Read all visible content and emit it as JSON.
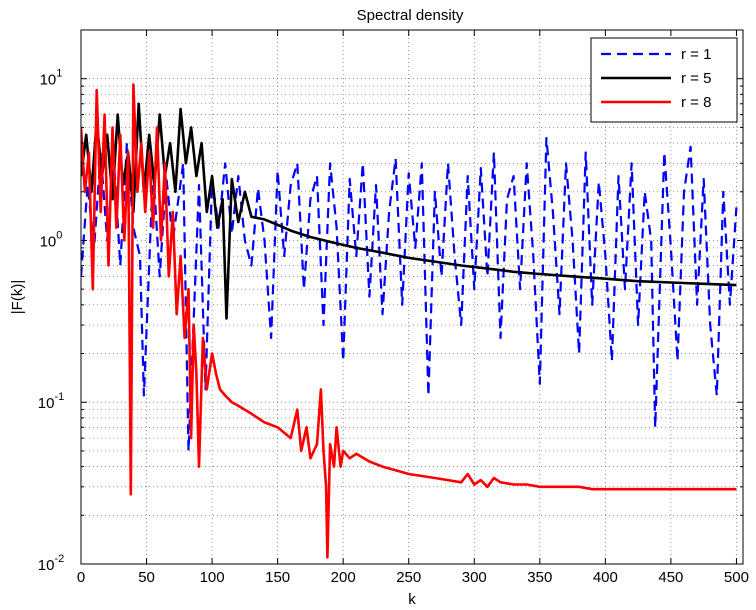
{
  "chart_data": {
    "type": "line",
    "title": "Spectral density",
    "xlabel": "k",
    "ylabel": "|F(k)|",
    "xlim": [
      0,
      505
    ],
    "ylim": [
      0.01,
      20
    ],
    "yscale": "log",
    "grid": true,
    "grid_style": "dotted",
    "legend_position": "top-right",
    "x_ticks": [
      0,
      50,
      100,
      150,
      200,
      250,
      300,
      350,
      400,
      450,
      500
    ],
    "x_tick_labels": [
      "0",
      "50",
      "100",
      "150",
      "200",
      "250",
      "300",
      "350",
      "400",
      "450",
      "500"
    ],
    "y_ticks": [
      0.01,
      0.1,
      1,
      10
    ],
    "y_tick_labels": [
      {
        "base": "10",
        "exp": "-2"
      },
      {
        "base": "10",
        "exp": "-1"
      },
      {
        "base": "10",
        "exp": "0"
      },
      {
        "base": "10",
        "exp": "1"
      }
    ],
    "series": [
      {
        "name": "r = 1",
        "color": "#0000ff",
        "dash": "dashed",
        "line_width": 2.2,
        "x": [
          0,
          5,
          10,
          15,
          20,
          25,
          30,
          35,
          40,
          45,
          48,
          55,
          60,
          65,
          70,
          78,
          82,
          90,
          95,
          100,
          105,
          110,
          115,
          120,
          125,
          130,
          135,
          140,
          145,
          150,
          155,
          160,
          165,
          170,
          175,
          180,
          185,
          190,
          195,
          200,
          205,
          210,
          215,
          220,
          225,
          230,
          235,
          240,
          245,
          250,
          255,
          260,
          265,
          270,
          275,
          280,
          285,
          290,
          295,
          300,
          305,
          310,
          315,
          320,
          325,
          330,
          335,
          340,
          345,
          350,
          355,
          360,
          365,
          370,
          375,
          380,
          385,
          390,
          395,
          400,
          405,
          410,
          415,
          420,
          425,
          430,
          435,
          438,
          445,
          450,
          455,
          460,
          465,
          470,
          475,
          480,
          485,
          490,
          495,
          500
        ],
        "y": [
          0.6,
          2.2,
          0.9,
          3.5,
          1.0,
          3.2,
          0.7,
          4.0,
          1.2,
          0.8,
          0.11,
          2.8,
          0.6,
          2.5,
          1.0,
          3.0,
          0.05,
          2.2,
          0.12,
          2.4,
          1.2,
          3.0,
          1.1,
          2.5,
          1.0,
          0.7,
          2.1,
          1.0,
          0.25,
          2.7,
          0.8,
          2.2,
          3.0,
          0.5,
          1.8,
          2.5,
          0.3,
          3.0,
          1.2,
          0.18,
          2.4,
          0.8,
          3.0,
          0.45,
          2.2,
          0.35,
          1.5,
          3.2,
          0.4,
          2.6,
          0.9,
          3.0,
          0.11,
          2.0,
          0.6,
          3.0,
          0.8,
          0.3,
          2.5,
          0.5,
          2.8,
          0.6,
          3.5,
          0.25,
          1.8,
          2.5,
          0.5,
          3.0,
          0.8,
          0.13,
          4.3,
          1.5,
          0.35,
          3.0,
          1.0,
          0.2,
          3.5,
          0.4,
          2.3,
          0.8,
          0.18,
          2.5,
          0.5,
          3.0,
          0.3,
          2.0,
          1.0,
          0.07,
          3.5,
          0.9,
          0.18,
          2.0,
          3.8,
          0.4,
          2.4,
          0.3,
          0.11,
          2.0,
          0.4,
          1.6
        ]
      },
      {
        "name": "r = 5",
        "color": "#000000",
        "dash": "solid",
        "line_width": 2.6,
        "x": [
          0,
          4,
          8,
          12,
          16,
          20,
          24,
          28,
          32,
          36,
          40,
          44,
          48,
          52,
          56,
          60,
          64,
          68,
          72,
          76,
          80,
          84,
          88,
          92,
          96,
          100,
          104,
          108,
          111,
          115,
          120,
          125,
          130,
          140,
          150,
          160,
          175,
          190,
          210,
          230,
          250,
          270,
          290,
          310,
          330,
          350,
          375,
          400,
          425,
          450,
          475,
          500
        ],
        "y": [
          2.5,
          4.5,
          2.0,
          5.5,
          2.5,
          4.5,
          1.8,
          6.0,
          2.2,
          3.5,
          1.5,
          7.0,
          2.0,
          4.5,
          2.2,
          6.0,
          2.5,
          4.0,
          2.0,
          6.5,
          3.0,
          5.0,
          2.5,
          4.0,
          1.5,
          2.5,
          1.2,
          1.8,
          0.33,
          2.4,
          1.3,
          2.0,
          1.4,
          1.35,
          1.25,
          1.15,
          1.05,
          0.98,
          0.9,
          0.84,
          0.78,
          0.74,
          0.7,
          0.67,
          0.64,
          0.62,
          0.6,
          0.58,
          0.56,
          0.55,
          0.54,
          0.53
        ]
      },
      {
        "name": "r = 8",
        "color": "#ff0000",
        "dash": "solid",
        "line_width": 2.6,
        "x": [
          0,
          3,
          6,
          9,
          12,
          15,
          18,
          21,
          24,
          27,
          30,
          33,
          36,
          38,
          40,
          43,
          46,
          49,
          52,
          55,
          58,
          61,
          64,
          67,
          70,
          73,
          76,
          79,
          82,
          84,
          86,
          88,
          90,
          93,
          96,
          100,
          103,
          106,
          110,
          115,
          120,
          130,
          140,
          150,
          160,
          165,
          168,
          172,
          175,
          180,
          183,
          185,
          187,
          188,
          190,
          193,
          195,
          198,
          200,
          205,
          210,
          220,
          230,
          240,
          250,
          260,
          270,
          280,
          290,
          295,
          300,
          305,
          310,
          315,
          320,
          330,
          340,
          350,
          360,
          370,
          380,
          390,
          400,
          410,
          420,
          430,
          440,
          450,
          460,
          470,
          480,
          490,
          500
        ],
        "y": [
          5.0,
          2.0,
          3.5,
          0.5,
          8.5,
          1.5,
          6.0,
          0.7,
          5.0,
          1.2,
          4.5,
          1.0,
          3.5,
          0.027,
          9.2,
          2.0,
          4.0,
          1.5,
          3.5,
          1.2,
          5.0,
          1.0,
          3.0,
          0.6,
          1.5,
          0.35,
          0.8,
          0.25,
          0.5,
          0.06,
          0.3,
          0.15,
          0.04,
          0.25,
          0.12,
          0.2,
          0.15,
          0.12,
          0.11,
          0.1,
          0.095,
          0.085,
          0.075,
          0.07,
          0.06,
          0.09,
          0.05,
          0.07,
          0.045,
          0.055,
          0.12,
          0.05,
          0.03,
          0.011,
          0.055,
          0.04,
          0.07,
          0.04,
          0.05,
          0.045,
          0.048,
          0.043,
          0.04,
          0.038,
          0.036,
          0.035,
          0.034,
          0.033,
          0.032,
          0.036,
          0.031,
          0.033,
          0.03,
          0.034,
          0.032,
          0.031,
          0.031,
          0.03,
          0.03,
          0.03,
          0.03,
          0.029,
          0.029,
          0.029,
          0.029,
          0.029,
          0.029,
          0.029,
          0.029,
          0.029,
          0.029,
          0.029,
          0.029
        ]
      }
    ]
  }
}
